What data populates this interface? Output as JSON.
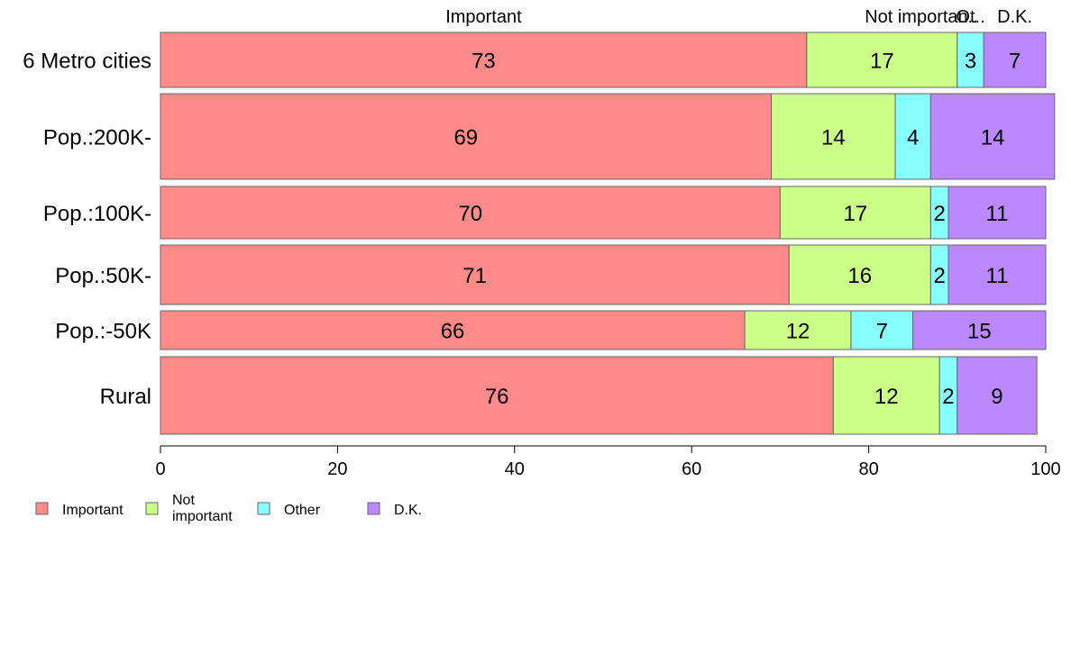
{
  "chart_data": {
    "type": "bar",
    "orientation": "horizontal",
    "stacked": true,
    "categories": [
      "6 Metro cities",
      "Pop.:200K-",
      "Pop.:100K-",
      "Pop.:50K-",
      "Pop.:-50K",
      "Rural"
    ],
    "series": [
      {
        "name": "Important",
        "color": "#ff8a8a",
        "values": [
          73,
          69,
          70,
          71,
          66,
          76
        ]
      },
      {
        "name": "Not important",
        "color": "#ccff88",
        "values": [
          17,
          14,
          17,
          16,
          12,
          12
        ]
      },
      {
        "name": "Other",
        "color": "#88ffff",
        "values": [
          3,
          4,
          2,
          2,
          7,
          2
        ]
      },
      {
        "name": "D.K.",
        "color": "#bb88ff",
        "values": [
          7,
          14,
          11,
          11,
          15,
          9
        ]
      }
    ],
    "top_labels": [
      "Important",
      "Not importan..",
      "Ot..",
      "D.K."
    ],
    "legend_labels": [
      "Important",
      "Not\nimportant",
      "Other",
      "D.K."
    ],
    "legend_position": "bottom-left",
    "xlim": [
      0,
      100
    ],
    "xticks": [
      0,
      20,
      40,
      60,
      80,
      100
    ],
    "grid": false
  }
}
